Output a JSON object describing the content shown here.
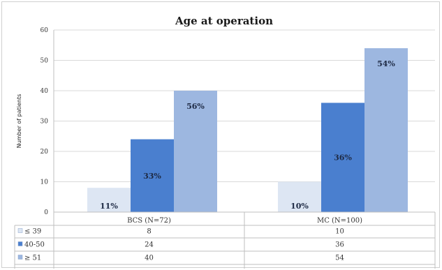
{
  "chart_data": {
    "type": "bar",
    "title": "Age at operation",
    "ylabel": "Number of patients",
    "xlabel": "",
    "ylim": [
      0,
      60
    ],
    "yticks": [
      0,
      10,
      20,
      30,
      40,
      50,
      60
    ],
    "grid": true,
    "categories": [
      "BCS (N=72)",
      "MC (N=100)"
    ],
    "series": [
      {
        "name": "≤ 39",
        "values": [
          8,
          10
        ],
        "labels": [
          "11%",
          "10%"
        ],
        "color": "#dde6f3"
      },
      {
        "name": "40-50",
        "values": [
          24,
          36
        ],
        "labels": [
          "33%",
          "36%"
        ],
        "color": "#4a7fcf"
      },
      {
        "name": "≥ 51",
        "values": [
          40,
          54
        ],
        "labels": [
          "56%",
          "54%"
        ],
        "color": "#9db7e0"
      }
    ],
    "legend": "data-table"
  }
}
